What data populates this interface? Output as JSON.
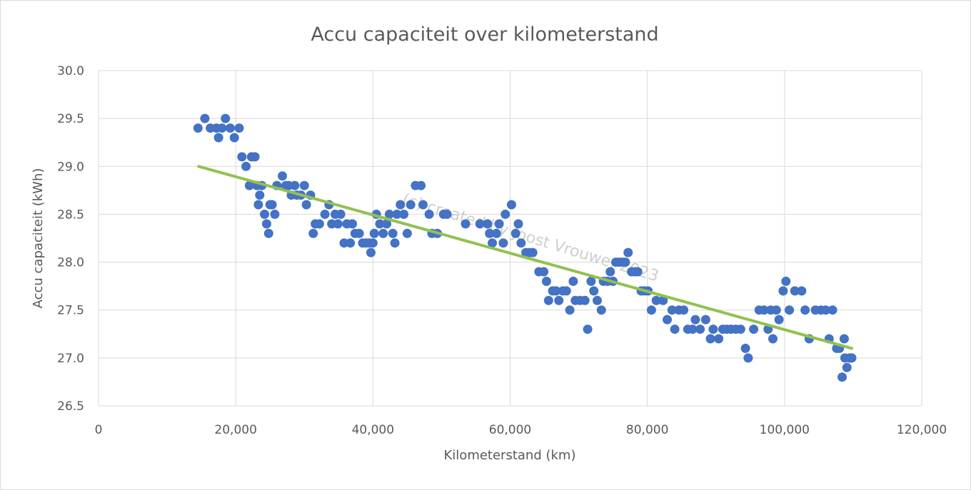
{
  "chart_data": {
    "type": "scatter",
    "title": "Accu capaciteit over kilometerstand",
    "xlabel": "Kilometerstand (km)",
    "ylabel": "Accu capaciteit (kWh)",
    "xlim": [
      0,
      120000
    ],
    "ylim": [
      26.5,
      30.0
    ],
    "x_ticks": [
      0,
      20000,
      40000,
      60000,
      80000,
      100000,
      120000
    ],
    "x_tick_labels": [
      "0",
      "20,000",
      "40,000",
      "60,000",
      "80,000",
      "100,000",
      "120,000"
    ],
    "y_ticks": [
      26.5,
      27.0,
      27.5,
      28.0,
      28.5,
      29.0,
      29.5,
      30.0
    ],
    "y_tick_labels": [
      "26.5",
      "27.0",
      "27.5",
      "28.0",
      "28.5",
      "29.0",
      "29.5",
      "30.0"
    ],
    "grid": true,
    "legend": "none",
    "point_color": "#4472c4",
    "trend_color": "#92c150",
    "watermark": "(c) created by Joost Vrouwe, 2023",
    "trendline": {
      "type": "linear",
      "x": [
        14600,
        109800
      ],
      "y": [
        29.0,
        27.1
      ]
    },
    "points": [
      [
        14500,
        29.4
      ],
      [
        15500,
        29.5
      ],
      [
        16300,
        29.4
      ],
      [
        17200,
        29.4
      ],
      [
        17500,
        29.3
      ],
      [
        18000,
        29.4
      ],
      [
        18500,
        29.5
      ],
      [
        19200,
        29.4
      ],
      [
        19800,
        29.3
      ],
      [
        20500,
        29.4
      ],
      [
        20900,
        29.1
      ],
      [
        21500,
        29.0
      ],
      [
        22000,
        28.8
      ],
      [
        22300,
        29.1
      ],
      [
        22800,
        29.1
      ],
      [
        23100,
        28.8
      ],
      [
        23300,
        28.6
      ],
      [
        23500,
        28.7
      ],
      [
        23800,
        28.8
      ],
      [
        24200,
        28.5
      ],
      [
        24500,
        28.4
      ],
      [
        24800,
        28.3
      ],
      [
        25000,
        28.6
      ],
      [
        25300,
        28.6
      ],
      [
        25700,
        28.5
      ],
      [
        26000,
        28.8
      ],
      [
        26800,
        28.9
      ],
      [
        27300,
        28.8
      ],
      [
        27700,
        28.8
      ],
      [
        28100,
        28.7
      ],
      [
        28600,
        28.8
      ],
      [
        28900,
        28.7
      ],
      [
        29500,
        28.7
      ],
      [
        30000,
        28.8
      ],
      [
        30300,
        28.6
      ],
      [
        30900,
        28.7
      ],
      [
        31300,
        28.3
      ],
      [
        31600,
        28.4
      ],
      [
        32200,
        28.4
      ],
      [
        33000,
        28.5
      ],
      [
        33600,
        28.6
      ],
      [
        34000,
        28.4
      ],
      [
        34500,
        28.5
      ],
      [
        34900,
        28.4
      ],
      [
        35300,
        28.5
      ],
      [
        35800,
        28.2
      ],
      [
        36200,
        28.4
      ],
      [
        36700,
        28.2
      ],
      [
        37000,
        28.4
      ],
      [
        37400,
        28.3
      ],
      [
        38000,
        28.3
      ],
      [
        38500,
        28.2
      ],
      [
        39000,
        28.2
      ],
      [
        39500,
        28.2
      ],
      [
        39700,
        28.1
      ],
      [
        40000,
        28.2
      ],
      [
        40200,
        28.3
      ],
      [
        40500,
        28.5
      ],
      [
        41000,
        28.4
      ],
      [
        41500,
        28.3
      ],
      [
        42000,
        28.4
      ],
      [
        42400,
        28.5
      ],
      [
        42900,
        28.3
      ],
      [
        43200,
        28.2
      ],
      [
        43500,
        28.5
      ],
      [
        44000,
        28.6
      ],
      [
        44500,
        28.5
      ],
      [
        45000,
        28.3
      ],
      [
        45500,
        28.6
      ],
      [
        46200,
        28.8
      ],
      [
        47000,
        28.8
      ],
      [
        47300,
        28.6
      ],
      [
        48200,
        28.5
      ],
      [
        48600,
        28.3
      ],
      [
        49400,
        28.3
      ],
      [
        50300,
        28.5
      ],
      [
        50800,
        28.5
      ],
      [
        53500,
        28.4
      ],
      [
        55600,
        28.4
      ],
      [
        56700,
        28.4
      ],
      [
        57000,
        28.3
      ],
      [
        57400,
        28.2
      ],
      [
        58000,
        28.3
      ],
      [
        58400,
        28.4
      ],
      [
        59000,
        28.2
      ],
      [
        59300,
        28.5
      ],
      [
        60200,
        28.6
      ],
      [
        60800,
        28.3
      ],
      [
        61200,
        28.4
      ],
      [
        61600,
        28.2
      ],
      [
        62300,
        28.1
      ],
      [
        62800,
        28.1
      ],
      [
        63300,
        28.1
      ],
      [
        64200,
        27.9
      ],
      [
        64900,
        27.9
      ],
      [
        65300,
        27.8
      ],
      [
        65600,
        27.6
      ],
      [
        66200,
        27.7
      ],
      [
        66700,
        27.7
      ],
      [
        67100,
        27.6
      ],
      [
        67700,
        27.7
      ],
      [
        68200,
        27.7
      ],
      [
        68700,
        27.5
      ],
      [
        69200,
        27.8
      ],
      [
        69500,
        27.6
      ],
      [
        70200,
        27.6
      ],
      [
        70900,
        27.6
      ],
      [
        71300,
        27.3
      ],
      [
        71800,
        27.8
      ],
      [
        72200,
        27.7
      ],
      [
        72700,
        27.6
      ],
      [
        73300,
        27.5
      ],
      [
        73600,
        27.8
      ],
      [
        74200,
        27.8
      ],
      [
        74600,
        27.9
      ],
      [
        75000,
        27.8
      ],
      [
        75400,
        28.0
      ],
      [
        75900,
        28.0
      ],
      [
        76400,
        28.0
      ],
      [
        76800,
        28.0
      ],
      [
        77200,
        28.1
      ],
      [
        77700,
        27.9
      ],
      [
        78200,
        27.9
      ],
      [
        78600,
        27.9
      ],
      [
        79100,
        27.7
      ],
      [
        79600,
        27.7
      ],
      [
        80100,
        27.7
      ],
      [
        80600,
        27.5
      ],
      [
        81300,
        27.6
      ],
      [
        82300,
        27.6
      ],
      [
        82900,
        27.4
      ],
      [
        83600,
        27.5
      ],
      [
        84000,
        27.3
      ],
      [
        84600,
        27.5
      ],
      [
        85300,
        27.5
      ],
      [
        85900,
        27.3
      ],
      [
        86600,
        27.3
      ],
      [
        87000,
        27.4
      ],
      [
        87700,
        27.3
      ],
      [
        88500,
        27.4
      ],
      [
        89200,
        27.2
      ],
      [
        89600,
        27.3
      ],
      [
        90400,
        27.2
      ],
      [
        91000,
        27.3
      ],
      [
        91600,
        27.3
      ],
      [
        92200,
        27.3
      ],
      [
        92900,
        27.3
      ],
      [
        93600,
        27.3
      ],
      [
        94300,
        27.1
      ],
      [
        94700,
        27.0
      ],
      [
        95500,
        27.3
      ],
      [
        96300,
        27.5
      ],
      [
        97000,
        27.5
      ],
      [
        97600,
        27.3
      ],
      [
        98000,
        27.5
      ],
      [
        98300,
        27.2
      ],
      [
        98800,
        27.5
      ],
      [
        99200,
        27.4
      ],
      [
        99800,
        27.7
      ],
      [
        100200,
        27.8
      ],
      [
        100700,
        27.5
      ],
      [
        101500,
        27.7
      ],
      [
        102500,
        27.7
      ],
      [
        103000,
        27.5
      ],
      [
        103600,
        27.2
      ],
      [
        104500,
        27.5
      ],
      [
        105300,
        27.5
      ],
      [
        106000,
        27.5
      ],
      [
        106500,
        27.2
      ],
      [
        107000,
        27.5
      ],
      [
        107600,
        27.1
      ],
      [
        108000,
        27.1
      ],
      [
        108400,
        26.8
      ],
      [
        108800,
        27.0
      ],
      [
        109100,
        26.9
      ],
      [
        109500,
        27.0
      ],
      [
        109800,
        27.0
      ],
      [
        108700,
        27.2
      ]
    ]
  }
}
